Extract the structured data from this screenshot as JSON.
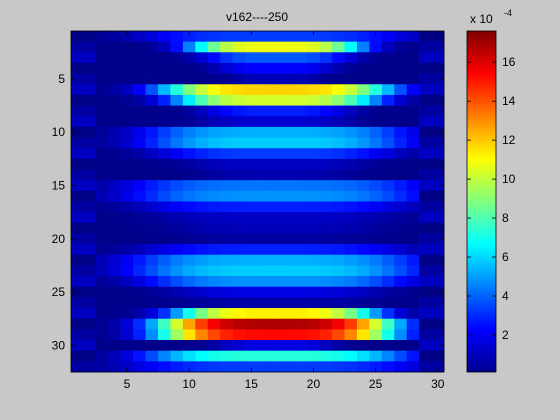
{
  "chart_data": {
    "type": "heatmap",
    "title": "v162----250",
    "xlabel": "",
    "ylabel": "",
    "columns": 30,
    "rows": 32,
    "x_ticks": [
      5,
      10,
      15,
      20,
      25,
      30
    ],
    "y_ticks": [
      5,
      10,
      15,
      20,
      25,
      30
    ],
    "y_direction": "reverse",
    "colormap": "jet",
    "color_limits": [
      1e-05,
      0.00176
    ],
    "colorbar": {
      "exponent_label": "x 10",
      "exponent": "-4",
      "ticks": [
        2,
        4,
        6,
        8,
        10,
        12,
        14,
        16
      ]
    },
    "row_profiles": {
      "description_units": "x 1e-4; each row: [peak value, half-width in columns]",
      "rows": [
        [
          3.0,
          9
        ],
        [
          10.5,
          6
        ],
        [
          3.5,
          5
        ],
        [
          2.0,
          4
        ],
        [
          0.8,
          3
        ],
        [
          11.5,
          8
        ],
        [
          10.0,
          7
        ],
        [
          2.5,
          5
        ],
        [
          1.2,
          5
        ],
        [
          5.0,
          9
        ],
        [
          5.5,
          9
        ],
        [
          3.0,
          8
        ],
        [
          1.0,
          6
        ],
        [
          0.6,
          5
        ],
        [
          4.0,
          10
        ],
        [
          4.5,
          10
        ],
        [
          2.5,
          9
        ],
        [
          1.0,
          8
        ],
        [
          0.8,
          7
        ],
        [
          0.4,
          6
        ],
        [
          2.5,
          9
        ],
        [
          5.0,
          10
        ],
        [
          5.5,
          10
        ],
        [
          4.5,
          9
        ],
        [
          1.5,
          7
        ],
        [
          0.5,
          6
        ],
        [
          11.0,
          7
        ],
        [
          16.5,
          8
        ],
        [
          15.0,
          8
        ],
        [
          1.5,
          4
        ],
        [
          7.0,
          9
        ],
        [
          3.0,
          10
        ]
      ],
      "center_column": 17
    }
  }
}
